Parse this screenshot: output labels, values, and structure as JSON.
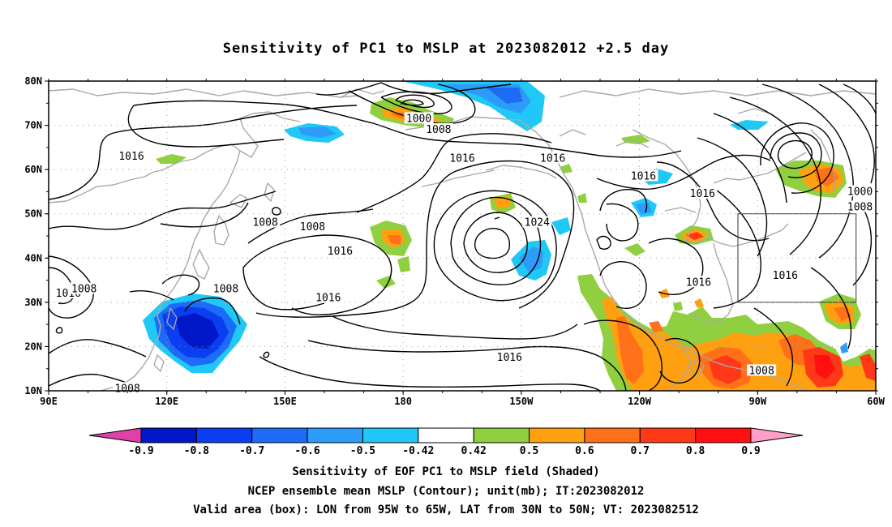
{
  "title": "Sensitivity of PC1 to MSLP at 2023082012 +2.5 day",
  "map": {
    "lat_labels": [
      "80N",
      "70N",
      "60N",
      "50N",
      "40N",
      "30N",
      "20N",
      "10N"
    ],
    "lon_labels": [
      "90E",
      "120E",
      "150E",
      "180",
      "150W",
      "120W",
      "90W",
      "60W"
    ],
    "contour_labels": [
      {
        "text": "1000",
        "lon": -176,
        "lat": 71.5
      },
      {
        "text": "1008",
        "lon": -171,
        "lat": 69
      },
      {
        "text": "1016",
        "lon": 111,
        "lat": 63
      },
      {
        "text": "1016",
        "lon": -165,
        "lat": 62.5
      },
      {
        "text": "1016",
        "lon": -142,
        "lat": 62.5
      },
      {
        "text": "1016",
        "lon": -119,
        "lat": 58.5
      },
      {
        "text": "1016",
        "lon": -104,
        "lat": 54.5
      },
      {
        "text": "1000",
        "lon": -64,
        "lat": 55
      },
      {
        "text": "1008",
        "lon": -64,
        "lat": 51.5
      },
      {
        "text": "1008",
        "lon": 145,
        "lat": 48
      },
      {
        "text": "1008",
        "lon": 157,
        "lat": 47
      },
      {
        "text": "1024",
        "lon": -146,
        "lat": 48
      },
      {
        "text": "1016",
        "lon": 164,
        "lat": 41.5
      },
      {
        "text": "1016",
        "lon": -105,
        "lat": 34.5
      },
      {
        "text": "1016",
        "lon": -83,
        "lat": 36
      },
      {
        "text": "1008",
        "lon": 135,
        "lat": 33
      },
      {
        "text": "1016",
        "lon": 95,
        "lat": 32
      },
      {
        "text": "1008",
        "lon": 99,
        "lat": 33
      },
      {
        "text": "1016",
        "lon": 161,
        "lat": 31
      },
      {
        "text": "1016",
        "lon": -153,
        "lat": 17.5
      },
      {
        "text": "1008",
        "lon": -89,
        "lat": 14.5
      },
      {
        "text": "1008",
        "lon": 110,
        "lat": 10.5
      }
    ],
    "valid_box": {
      "lon_min": -95,
      "lon_max": -65,
      "lat_min": 30,
      "lat_max": 50
    }
  },
  "colorbar": {
    "labels": [
      "-0.9",
      "-0.8",
      "-0.7",
      "-0.6",
      "-0.5",
      "-0.42",
      "0.42",
      "0.5",
      "0.6",
      "0.7",
      "0.8",
      "0.9"
    ],
    "colors": [
      "#e040a8",
      "#0018c8",
      "#0a3ef0",
      "#1c6cf8",
      "#2c9cf8",
      "#20c8f8",
      "#ffffff",
      "#90d040",
      "#ffa010",
      "#ff7018",
      "#ff3818",
      "#ff1010",
      "#ff9ec8"
    ]
  },
  "captions": [
    "Sensitivity of EOF PC1 to MSLP field (Shaded)",
    "NCEP ensemble mean MSLP (Contour); unit(mb); IT:2023082012",
    "Valid area (box): LON from 95W to 65W, LAT from 30N to 50N; VT: 2023082512"
  ]
}
